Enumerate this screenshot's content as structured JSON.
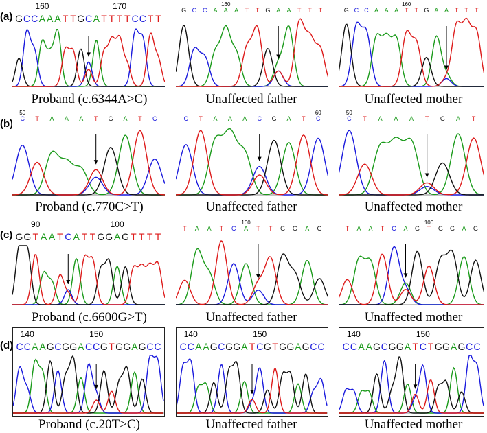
{
  "colors": {
    "A": "#1a9a1a",
    "C": "#1a1add",
    "G": "#111111",
    "T": "#dd1a1a"
  },
  "rows": [
    {
      "label": "(a)",
      "panels": [
        {
          "pos": "1",
          "caption": "Proband (c.6344A>C)",
          "seq": "GCCAAATTGCATTTTCCTT",
          "base_size": "large",
          "ticks": [
            {
              "i": 3,
              "text": "160"
            },
            {
              "i": 13,
              "text": "170"
            }
          ],
          "arrow_i": 9,
          "boxed": false,
          "seed": 3
        },
        {
          "pos": "2",
          "caption": "Unaffected father",
          "seq": "GCCAAATTGAATTT",
          "base_size": "small",
          "ticks": [
            {
              "i": 4,
              "text": "160"
            }
          ],
          "arrow_i": 9,
          "boxed": false,
          "seed": 11
        },
        {
          "pos": "3",
          "caption": "Unaffected mother",
          "seq": "GCCAAATTGAATTT",
          "base_size": "small",
          "ticks": [
            {
              "i": 6,
              "text": "160"
            }
          ],
          "arrow_i": 10,
          "boxed": false,
          "seed": 23
        }
      ]
    },
    {
      "label": "(b)",
      "panels": [
        {
          "pos": "1",
          "caption": "Proband (c.770C>T)",
          "seq": "CTAAATGATC",
          "base_size": "small",
          "ticks": [
            {
              "i": 0,
              "text": "50"
            }
          ],
          "arrow_i": 5,
          "boxed": false,
          "seed": 31
        },
        {
          "pos": "2",
          "caption": "Unaffected father",
          "seq": "CTAAACGATC",
          "base_size": "small",
          "ticks": [
            {
              "i": 9,
              "text": "60"
            }
          ],
          "arrow_i": 5,
          "boxed": false,
          "seed": 37
        },
        {
          "pos": "3",
          "caption": "Unaffected mother",
          "seq": "CTAAATGAT",
          "base_size": "small",
          "ticks": [
            {
              "i": 0,
              "text": "50"
            }
          ],
          "arrow_i": 5,
          "boxed": false,
          "seed": 41
        }
      ]
    },
    {
      "label": "(c)",
      "panels": [
        {
          "pos": "1",
          "caption": "Proband (c.6600G>T)",
          "seq": "GGTAATCATTGGAGTTTT",
          "base_size": "large",
          "ticks": [
            {
              "i": 2,
              "text": "90"
            },
            {
              "i": 12,
              "text": "100"
            }
          ],
          "arrow_i": 6,
          "boxed": false,
          "seed": 47
        },
        {
          "pos": "2",
          "caption": "Unaffected father",
          "seq": "TAATCATTGGAG",
          "base_size": "small",
          "ticks": [
            {
              "i": 5,
              "text": "100"
            }
          ],
          "arrow_i": 6,
          "boxed": false,
          "seed": 53
        },
        {
          "pos": "3",
          "caption": "Unaffected mother",
          "seq": "TAATCAGTGGAG",
          "base_size": "small",
          "ticks": [
            {
              "i": 7,
              "text": "100"
            }
          ],
          "arrow_i": 5,
          "boxed": false,
          "seed": 59
        }
      ]
    },
    {
      "label": "(d)",
      "panels": [
        {
          "pos": "1",
          "caption": "Proband (c.20T>C)",
          "seq": "CCAAGCGGACCGTGGAGCC",
          "base_size": "large",
          "ticks": [
            {
              "i": 1,
              "text": "140"
            },
            {
              "i": 10,
              "text": "150"
            }
          ],
          "arrow_i": 10,
          "boxed": true,
          "seed": 61
        },
        {
          "pos": "2",
          "caption": "Unaffected father",
          "seq": "CCAAGCGGATCGTGGAGCC",
          "base_size": "large",
          "ticks": [
            {
              "i": 1,
              "text": "140"
            },
            {
              "i": 10,
              "text": "150"
            }
          ],
          "arrow_i": 9,
          "boxed": true,
          "seed": 67
        },
        {
          "pos": "3",
          "caption": "Unaffected mother",
          "seq": "CCAAGCGGATCTGGAGCC",
          "base_size": "large",
          "ticks": [
            {
              "i": 1,
              "text": "140"
            },
            {
              "i": 10,
              "text": "150"
            }
          ],
          "arrow_i": 9,
          "boxed": true,
          "seed": 71
        }
      ]
    }
  ]
}
